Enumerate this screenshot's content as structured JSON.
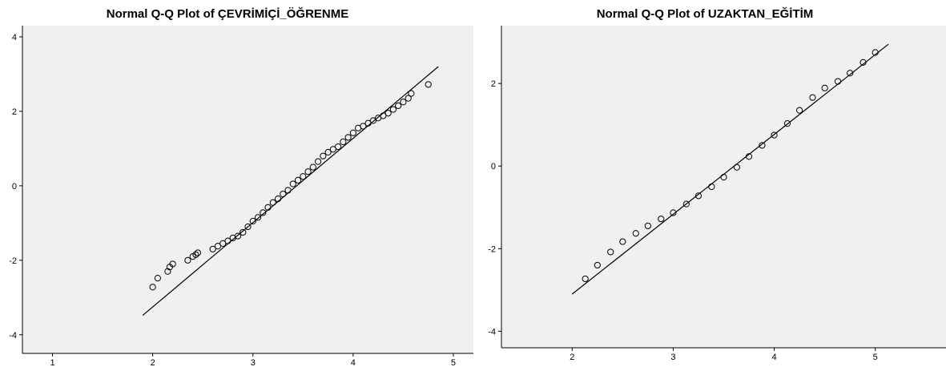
{
  "chart_data": [
    {
      "type": "scatter",
      "title": "Normal Q-Q Plot of ÇEVRİMİÇİ_ÖĞRENME",
      "xlabel": "",
      "ylabel": "",
      "xlim": [
        0.7,
        5.2
      ],
      "ylim": [
        -4.5,
        4.3
      ],
      "xticks": [
        1,
        2,
        3,
        4,
        5
      ],
      "yticks": [
        -4,
        -2,
        0,
        2,
        4
      ],
      "reference_line": {
        "x": [
          1.9,
          4.85
        ],
        "y": [
          -3.48,
          3.2
        ]
      },
      "points": {
        "x": [
          2.0,
          2.05,
          2.15,
          2.17,
          2.2,
          2.35,
          2.4,
          2.43,
          2.45,
          2.6,
          2.65,
          2.7,
          2.75,
          2.8,
          2.85,
          2.9,
          2.95,
          3.0,
          3.05,
          3.1,
          3.15,
          3.2,
          3.25,
          3.3,
          3.35,
          3.4,
          3.45,
          3.5,
          3.55,
          3.6,
          3.65,
          3.7,
          3.75,
          3.8,
          3.85,
          3.9,
          3.95,
          4.0,
          4.05,
          4.1,
          4.15,
          4.2,
          4.25,
          4.3,
          4.35,
          4.4,
          4.45,
          4.5,
          4.55,
          4.58,
          4.75
        ],
        "y": [
          -2.72,
          -2.48,
          -2.3,
          -2.18,
          -2.1,
          -2.0,
          -1.9,
          -1.85,
          -1.8,
          -1.7,
          -1.62,
          -1.55,
          -1.48,
          -1.4,
          -1.35,
          -1.25,
          -1.1,
          -0.95,
          -0.85,
          -0.72,
          -0.58,
          -0.45,
          -0.35,
          -0.22,
          -0.12,
          0.05,
          0.15,
          0.25,
          0.38,
          0.5,
          0.65,
          0.8,
          0.9,
          0.98,
          1.05,
          1.18,
          1.3,
          1.42,
          1.55,
          1.6,
          1.68,
          1.75,
          1.82,
          1.88,
          1.95,
          2.05,
          2.15,
          2.25,
          2.35,
          2.48,
          2.72
        ]
      }
    },
    {
      "type": "scatter",
      "title": "Normal Q-Q Plot of UZAKTAN_EĞİTİM",
      "xlabel": "",
      "ylabel": "",
      "xlim": [
        1.3,
        5.7
      ],
      "ylim": [
        -4.4,
        3.4
      ],
      "xticks": [
        2,
        3,
        4,
        5
      ],
      "yticks": [
        -4,
        -2,
        0,
        2
      ],
      "reference_line": {
        "x": [
          2.0,
          5.13
        ],
        "y": [
          -3.1,
          2.95
        ]
      },
      "points": {
        "x": [
          2.13,
          2.25,
          2.38,
          2.5,
          2.63,
          2.75,
          2.88,
          3.0,
          3.13,
          3.25,
          3.38,
          3.5,
          3.63,
          3.75,
          3.88,
          4.0,
          4.13,
          4.25,
          4.38,
          4.5,
          4.63,
          4.75,
          4.88,
          5.0
        ],
        "y": [
          -2.73,
          -2.4,
          -2.08,
          -1.83,
          -1.63,
          -1.45,
          -1.28,
          -1.13,
          -0.92,
          -0.72,
          -0.5,
          -0.27,
          -0.03,
          0.23,
          0.5,
          0.75,
          1.03,
          1.35,
          1.66,
          1.89,
          2.05,
          2.25,
          2.51,
          2.75
        ]
      }
    }
  ]
}
